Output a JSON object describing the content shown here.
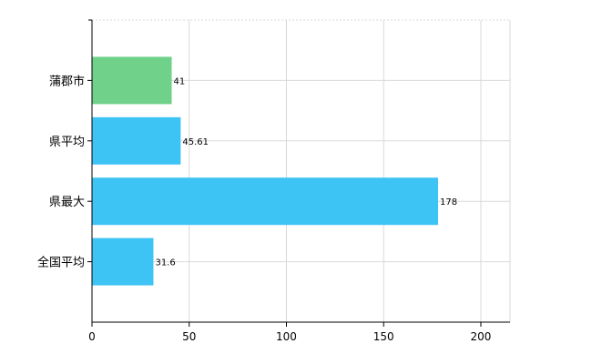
{
  "chart_data": {
    "type": "bar",
    "orientation": "horizontal",
    "categories": [
      "蒲郡市",
      "県平均",
      "県最大",
      "全国平均"
    ],
    "values": [
      41,
      45.61,
      178,
      31.6
    ],
    "data_labels": [
      "41",
      "45.61",
      "178",
      "31.6"
    ],
    "bar_colors": [
      "#6fd18a",
      "#3ec3f5",
      "#3ec3f5",
      "#3ec3f5"
    ],
    "xlim": [
      0,
      215
    ],
    "xticks": [
      0,
      50,
      100,
      150,
      200
    ],
    "grid": true,
    "title": "",
    "xlabel": "",
    "ylabel": ""
  }
}
